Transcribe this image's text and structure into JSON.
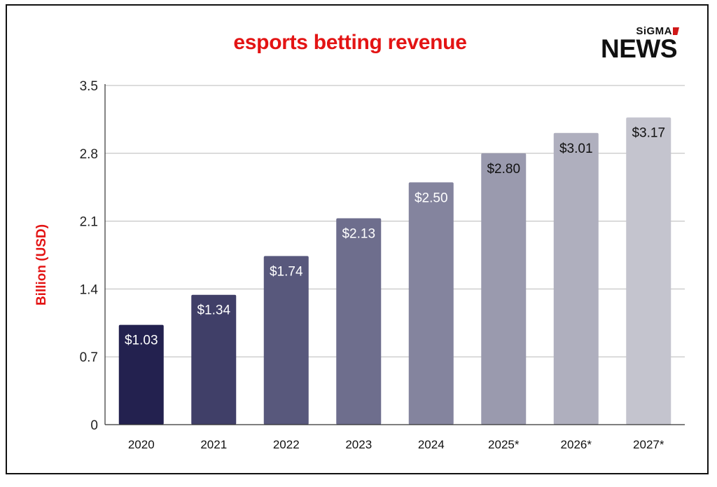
{
  "brand": {
    "logo_top": "SiGMA",
    "logo_main": "NEWS",
    "accent_color": "#d01818"
  },
  "chart_data": {
    "type": "bar",
    "title": "esports betting revenue",
    "title_color": "#e31414",
    "ylabel": "Billion (USD)",
    "ylabel_color": "#e31414",
    "xlabel": "",
    "categories": [
      "2020",
      "2021",
      "2022",
      "2023",
      "2024",
      "2025*",
      "2026*",
      "2027*"
    ],
    "values": [
      1.03,
      1.34,
      1.74,
      2.13,
      2.5,
      2.8,
      3.01,
      3.17
    ],
    "data_labels": [
      "$1.03",
      "$1.34",
      "$1.74",
      "$2.13",
      "$2.50",
      "$2.80",
      "$3.01",
      "$3.17"
    ],
    "bar_colors": [
      "#23214f",
      "#403f68",
      "#58587c",
      "#6e6e8d",
      "#84849e",
      "#9a9aae",
      "#afafbe",
      "#c4c4ce"
    ],
    "label_colors": [
      "#ffffff",
      "#ffffff",
      "#ffffff",
      "#ffffff",
      "#ffffff",
      "#111111",
      "#111111",
      "#111111"
    ],
    "yticks": [
      "0",
      "0.7",
      "1.4",
      "2.1",
      "2.8",
      "3.5"
    ],
    "ylim": [
      0,
      3.5
    ],
    "grid": true,
    "legend": "none"
  }
}
